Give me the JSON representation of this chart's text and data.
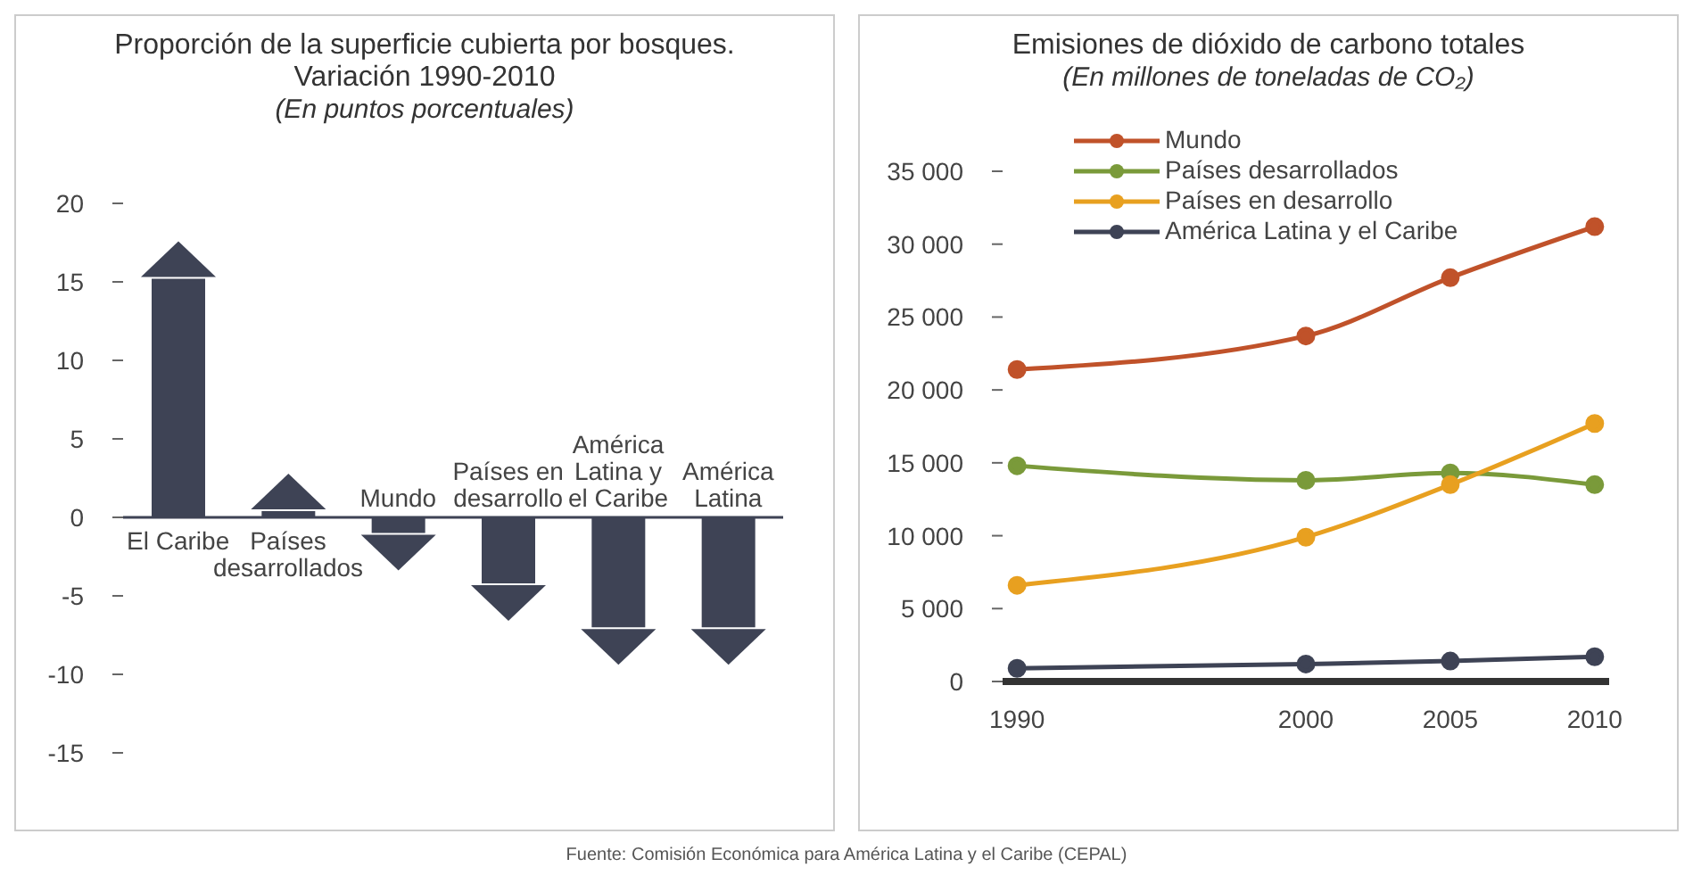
{
  "chart_data": [
    {
      "type": "bar",
      "title": "Proporción de la superficie cubierta por bosques. Variación 1990-2010",
      "subtitle": "(En puntos porcentuales)",
      "categories": [
        "El Caribe",
        "Países desarrollados",
        "Mundo",
        "Países en desarrollo",
        "América Latina y el Caribe",
        "América Latina"
      ],
      "values": [
        15.2,
        0.4,
        -1.0,
        -4.2,
        -7.0,
        -7.0
      ],
      "color": "#3e4355",
      "ylim": [
        -15,
        20
      ],
      "yticks": [
        -15,
        -10,
        -5,
        0,
        5,
        10,
        15,
        20
      ],
      "grid": false,
      "annotations": [
        "Fuente: Comisión Económica para América Latina y el Caribe (CEPAL)"
      ]
    },
    {
      "type": "line",
      "title": "Emisiones de dióxido de carbono totales",
      "subtitle": "(En millones de toneladas de CO₂)",
      "x": [
        1990,
        2000,
        2005,
        2010
      ],
      "series": [
        {
          "name": "Mundo",
          "color": "#c0522a",
          "values": [
            21400,
            23700,
            27700,
            31200
          ]
        },
        {
          "name": "Países desarrollados",
          "color": "#7a9a3a",
          "values": [
            14800,
            13800,
            14300,
            13500
          ]
        },
        {
          "name": "Países en desarrollo",
          "color": "#e8a020",
          "values": [
            6600,
            9900,
            13500,
            17700
          ]
        },
        {
          "name": "América Latina y el Caribe",
          "color": "#3e4355",
          "values": [
            900,
            1200,
            1400,
            1700
          ]
        }
      ],
      "xlim": [
        1989.5,
        2010.5
      ],
      "xticks": [
        1990,
        2000,
        2005,
        2010
      ],
      "ylim": [
        0,
        35000
      ],
      "yticks": [
        0,
        {
          "value": 5000,
          "label": "5 000"
        },
        {
          "value": 10000,
          "label": "10 000"
        },
        {
          "value": 15000,
          "label": "15 000"
        },
        {
          "value": 20000,
          "label": "20 000"
        },
        {
          "value": 25000,
          "label": "25 000"
        },
        {
          "value": 30000,
          "label": "30 000"
        },
        {
          "value": 35000,
          "label": "35 000"
        }
      ],
      "grid": false,
      "legend": "top left",
      "marker": "circle",
      "line_style": "solid"
    }
  ]
}
